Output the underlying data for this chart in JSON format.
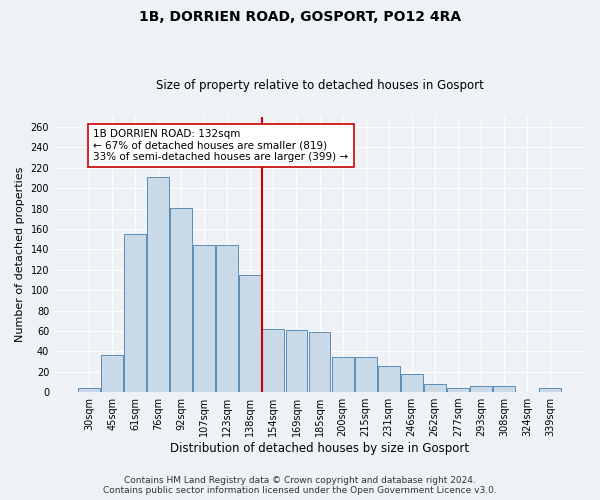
{
  "title_line1": "1B, DORRIEN ROAD, GOSPORT, PO12 4RA",
  "title_line2": "Size of property relative to detached houses in Gosport",
  "xlabel": "Distribution of detached houses by size in Gosport",
  "ylabel": "Number of detached properties",
  "categories": [
    "30sqm",
    "45sqm",
    "61sqm",
    "76sqm",
    "92sqm",
    "107sqm",
    "123sqm",
    "138sqm",
    "154sqm",
    "169sqm",
    "185sqm",
    "200sqm",
    "215sqm",
    "231sqm",
    "246sqm",
    "262sqm",
    "277sqm",
    "293sqm",
    "308sqm",
    "324sqm",
    "339sqm"
  ],
  "values": [
    4,
    36,
    155,
    211,
    181,
    144,
    144,
    115,
    62,
    61,
    59,
    34,
    34,
    26,
    18,
    8,
    4,
    6,
    6,
    0,
    4
  ],
  "bar_color": "#c9d9e8",
  "bar_edge_color": "#5b8db8",
  "vline_x": 7.5,
  "vline_color": "#cc0000",
  "annotation_line1": "1B DORRIEN ROAD: 132sqm",
  "annotation_line2": "← 67% of detached houses are smaller (819)",
  "annotation_line3": "33% of semi-detached houses are larger (399) →",
  "annotation_box_color": "#ffffff",
  "annotation_box_edge": "#cc0000",
  "ylim": [
    0,
    270
  ],
  "yticks": [
    0,
    20,
    40,
    60,
    80,
    100,
    120,
    140,
    160,
    180,
    200,
    220,
    240,
    260
  ],
  "footer_line1": "Contains HM Land Registry data © Crown copyright and database right 2024.",
  "footer_line2": "Contains public sector information licensed under the Open Government Licence v3.0.",
  "bg_color": "#eef2f7",
  "grid_color": "#ffffff",
  "title1_fontsize": 10,
  "title2_fontsize": 8.5,
  "xlabel_fontsize": 8.5,
  "ylabel_fontsize": 8,
  "tick_fontsize": 7,
  "footer_fontsize": 6.5,
  "annot_fontsize": 7.5
}
